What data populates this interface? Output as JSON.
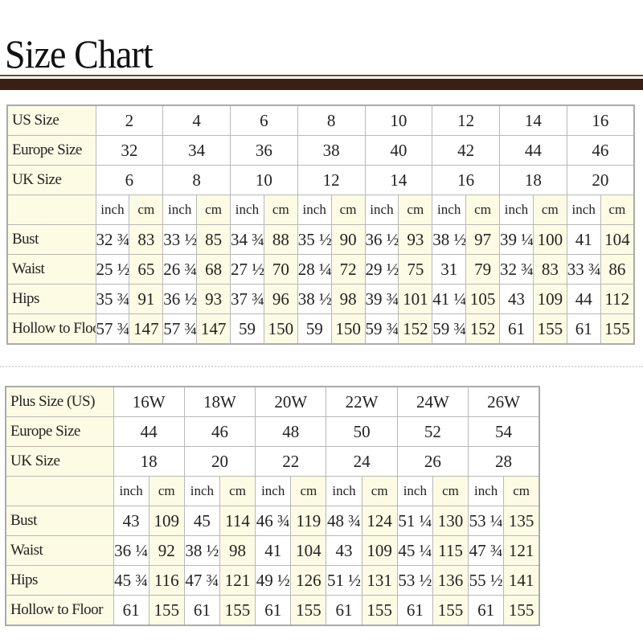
{
  "title": "Size Chart",
  "units": [
    "inch",
    "cm"
  ],
  "standard": {
    "size_rows": [
      {
        "label": "US Size",
        "values": [
          "2",
          "4",
          "6",
          "8",
          "10",
          "12",
          "14",
          "16"
        ]
      },
      {
        "label": "Europe Size",
        "values": [
          "32",
          "34",
          "36",
          "38",
          "40",
          "42",
          "44",
          "46"
        ]
      },
      {
        "label": "UK Size",
        "values": [
          "6",
          "8",
          "10",
          "12",
          "14",
          "16",
          "18",
          "20"
        ]
      }
    ],
    "measure_rows": [
      {
        "label": "Bust",
        "values": [
          "32 ¾",
          "83",
          "33 ½",
          "85",
          "34 ¾",
          "88",
          "35 ½",
          "90",
          "36 ½",
          "93",
          "38 ½",
          "97",
          "39 ¼",
          "100",
          "41",
          "104"
        ]
      },
      {
        "label": "Waist",
        "values": [
          "25 ½",
          "65",
          "26 ¾",
          "68",
          "27 ½",
          "70",
          "28 ¼",
          "72",
          "29 ½",
          "75",
          "31",
          "79",
          "32 ¾",
          "83",
          "33 ¾",
          "86"
        ]
      },
      {
        "label": "Hips",
        "values": [
          "35 ¾",
          "91",
          "36 ½",
          "93",
          "37 ¾",
          "96",
          "38 ½",
          "98",
          "39 ¾",
          "101",
          "41 ¼",
          "105",
          "43",
          "109",
          "44",
          "112"
        ]
      },
      {
        "label": "Hollow to Floor",
        "values": [
          "57 ¾",
          "147",
          "57 ¾",
          "147",
          "59",
          "150",
          "59",
          "150",
          "59 ¾",
          "152",
          "59 ¾",
          "152",
          "61",
          "155",
          "61",
          "155"
        ]
      }
    ]
  },
  "plus": {
    "size_rows": [
      {
        "label": "Plus Size (US)",
        "values": [
          "16W",
          "18W",
          "20W",
          "22W",
          "24W",
          "26W"
        ]
      },
      {
        "label": "Europe Size",
        "values": [
          "44",
          "46",
          "48",
          "50",
          "52",
          "54"
        ]
      },
      {
        "label": "UK Size",
        "values": [
          "18",
          "20",
          "22",
          "24",
          "26",
          "28"
        ]
      }
    ],
    "measure_rows": [
      {
        "label": "Bust",
        "values": [
          "43",
          "109",
          "45",
          "114",
          "46 ¾",
          "119",
          "48 ¾",
          "124",
          "51 ¼",
          "130",
          "53 ¼",
          "135"
        ]
      },
      {
        "label": "Waist",
        "values": [
          "36 ¼",
          "92",
          "38 ½",
          "98",
          "41",
          "104",
          "43",
          "109",
          "45 ¼",
          "115",
          "47 ¾",
          "121"
        ]
      },
      {
        "label": "Hips",
        "values": [
          "45 ¾",
          "116",
          "47 ¾",
          "121",
          "49 ½",
          "126",
          "51 ½",
          "131",
          "53 ½",
          "136",
          "55 ½",
          "141"
        ]
      },
      {
        "label": "Hollow to Floor",
        "values": [
          "61",
          "155",
          "61",
          "155",
          "61",
          "155",
          "61",
          "155",
          "61",
          "155",
          "61",
          "155"
        ]
      }
    ]
  }
}
